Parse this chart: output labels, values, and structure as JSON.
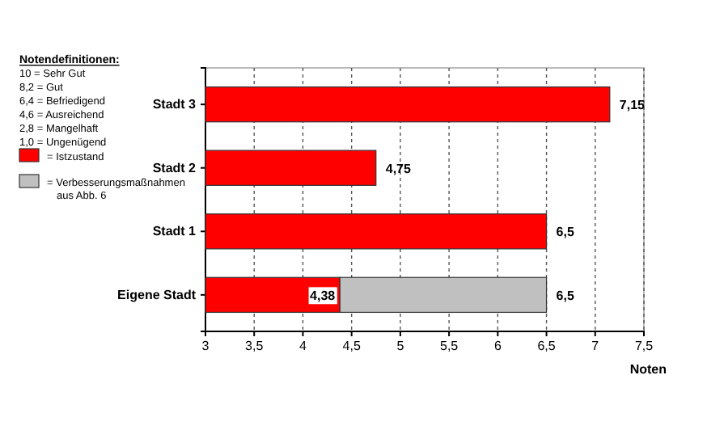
{
  "chart_data": {
    "type": "bar",
    "orientation": "horizontal",
    "categories": [
      "Stadt 3",
      "Stadt 2",
      "Stadt 1",
      "Eigene Stadt"
    ],
    "series": [
      {
        "name": "= Istzustand",
        "color": "#ff0000",
        "values": [
          7.15,
          4.75,
          6.5,
          4.38
        ],
        "value_labels": [
          "7,15",
          "4,75",
          "6,5",
          "4,38"
        ]
      },
      {
        "name": "= Verbesserungsmaßnahmen aus Abb. 6",
        "color": "#c0c0c0",
        "values": [
          null,
          null,
          null,
          2.12
        ],
        "base": [
          null,
          null,
          null,
          4.38
        ]
      }
    ],
    "totals": [
      null,
      null,
      null,
      "6,5"
    ],
    "xlim": [
      3,
      7.5
    ],
    "xticks": [
      3,
      {
        "value": 3.5,
        "label": "3,5"
      },
      4,
      {
        "value": 4.5,
        "label": "4,5"
      },
      5,
      {
        "value": 5.5,
        "label": "5,5"
      },
      6,
      {
        "value": 6.5,
        "label": "6,5"
      },
      7,
      {
        "value": 7.5,
        "label": "7,5"
      }
    ],
    "xlabel": "Noten",
    "grid": "x",
    "legend": "left",
    "annotations": [
      "Notendefinitionen:",
      "10 = Sehr Gut",
      "8,2 = Gut",
      "6,4 = Befriedigend",
      "4,6 = Ausreichend",
      "2,8 = Mangelhaft",
      "1,0 = Ungenügend"
    ]
  }
}
